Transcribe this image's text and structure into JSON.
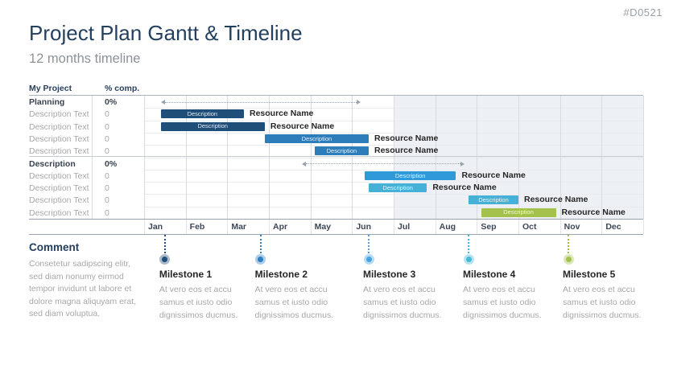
{
  "page": {
    "slide_code": "#D0521",
    "title": "Project Plan Gantt & Timeline",
    "subtitle": "12 months timeline"
  },
  "chart_data": {
    "type": "bar",
    "variant": "gantt-timeline",
    "title": "Project Plan Gantt & Timeline",
    "subtitle": "12 months timeline",
    "x_axis": {
      "unit": "month",
      "range": [
        0,
        12
      ],
      "tick_labels": [
        "Jan",
        "Feb",
        "Mar",
        "Apr",
        "May",
        "Jun",
        "Jul",
        "Aug",
        "Sep",
        "Oct",
        "Nov",
        "Dec"
      ]
    },
    "columns": {
      "project": "My Project",
      "completion": "% comp."
    },
    "shaded_region_months": [
      6,
      12
    ],
    "shade_color": "#edf1f6",
    "rows": [
      {
        "kind": "section",
        "label": "Planning",
        "completion": "0%",
        "span_months": [
          0.4,
          5.2
        ]
      },
      {
        "kind": "task",
        "label": "Description Text",
        "completion": "0",
        "bar": {
          "start_month": 0.4,
          "end_month": 2.4,
          "color": "#1f4e79",
          "label": "Description",
          "resource": "Resource Name"
        }
      },
      {
        "kind": "task",
        "label": "Description Text",
        "completion": "0",
        "bar": {
          "start_month": 0.4,
          "end_month": 2.9,
          "color": "#1f4e79",
          "label": "Description",
          "resource": "Resource Name"
        }
      },
      {
        "kind": "task",
        "label": "Description Text",
        "completion": "0",
        "bar": {
          "start_month": 2.9,
          "end_month": 5.4,
          "color": "#2d7dbb",
          "label": "Description",
          "resource": "Resource Name"
        }
      },
      {
        "kind": "task",
        "label": "Description Text",
        "completion": "0",
        "bar": {
          "start_month": 4.1,
          "end_month": 5.4,
          "color": "#2d7dbb",
          "label": "Description",
          "resource": "Resource Name"
        }
      },
      {
        "kind": "section",
        "label": "Description",
        "completion": "0%",
        "span_months": [
          3.8,
          7.7
        ]
      },
      {
        "kind": "task",
        "label": "Description Text",
        "completion": "0",
        "bar": {
          "start_month": 5.3,
          "end_month": 7.5,
          "color": "#2e9bd8",
          "label": "Description",
          "resource": "Resource Name"
        }
      },
      {
        "kind": "task",
        "label": "Description Text",
        "completion": "0",
        "bar": {
          "start_month": 5.4,
          "end_month": 6.8,
          "color": "#45b1d6",
          "label": "Description",
          "resource": "Resource Name"
        }
      },
      {
        "kind": "task",
        "label": "Description Text",
        "completion": "0",
        "bar": {
          "start_month": 7.8,
          "end_month": 9.0,
          "color": "#45b1d6",
          "label": "Description",
          "resource": "Resource Name"
        }
      },
      {
        "kind": "task",
        "label": "Description Text",
        "completion": "0",
        "bar": {
          "start_month": 8.1,
          "end_month": 9.9,
          "color": "#a3c14c",
          "label": "Description",
          "resource": "Resource Name"
        }
      }
    ],
    "milestones": [
      {
        "name": "Milestone 1",
        "month": 0.5,
        "color": "#1f4e79",
        "body": "At vero eos et accu samus et iusto odio dignissimos ducmus."
      },
      {
        "name": "Milestone 2",
        "month": 2.8,
        "color": "#2e7fc1",
        "body": "At vero eos et accu samus et iusto odio dignissimos ducmus."
      },
      {
        "name": "Milestone 3",
        "month": 5.4,
        "color": "#47a4e0",
        "body": "At vero eos et accu samus et iusto odio dignissimos ducmus."
      },
      {
        "name": "Milestone 4",
        "month": 7.8,
        "color": "#45b8d9",
        "body": "At vero eos et accu samus et iusto odio dignissimos ducmus."
      },
      {
        "name": "Milestone 5",
        "month": 10.2,
        "color": "#a3c14c",
        "body": "At vero eos et accu samus et iusto odio dignissimos ducmus."
      }
    ]
  },
  "comment": {
    "title": "Comment",
    "body": "Consetetur sadipscing elitr, sed diam nonumy eirmod tempor invidunt ut labore et dolore magna aliquyam erat, sed diam voluptua."
  }
}
